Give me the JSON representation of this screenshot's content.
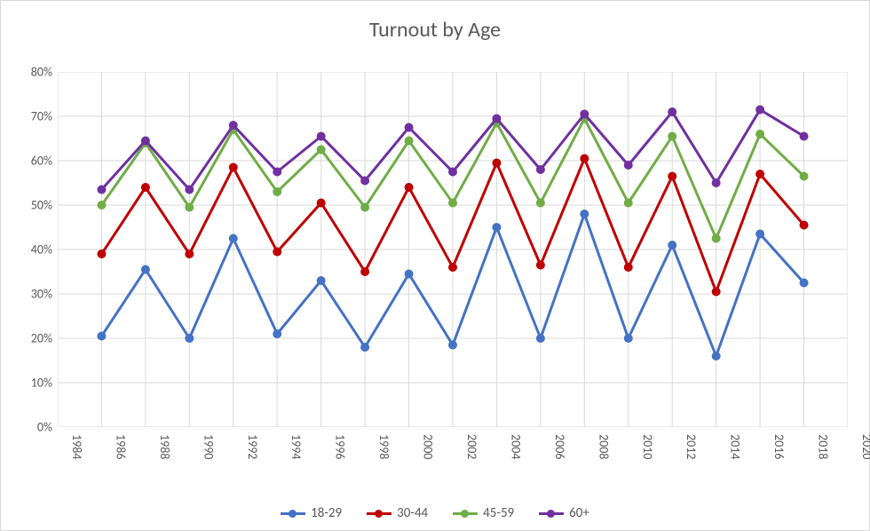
{
  "chart": {
    "type": "line",
    "title": "Turnout by Age",
    "title_fontsize": 24,
    "title_color": "#595959",
    "background_color": "#ffffff",
    "border_color": "#d9d9d9",
    "grid_color": "#d9d9d9",
    "axis_label_color": "#595959",
    "axis_label_fontsize": 14,
    "x": {
      "min": 1984,
      "max": 2020,
      "tick_step": 2,
      "ticks": [
        1984,
        1986,
        1988,
        1990,
        1992,
        1994,
        1996,
        1998,
        2000,
        2002,
        2004,
        2006,
        2008,
        2010,
        2012,
        2014,
        2016,
        2018,
        2020
      ],
      "label_rotation_vertical": true
    },
    "y": {
      "min": 0,
      "max": 80,
      "tick_step": 10,
      "ticks": [
        0,
        10,
        20,
        30,
        40,
        50,
        60,
        70,
        80
      ],
      "format": "percent"
    },
    "series_years": [
      1986,
      1988,
      1990,
      1992,
      1994,
      1996,
      1998,
      2000,
      2002,
      2004,
      2006,
      2008,
      2010,
      2012,
      2014,
      2016,
      2018
    ],
    "series": [
      {
        "name": "18-29",
        "color": "#4472c4",
        "marker": "circle",
        "marker_size": 9,
        "line_width": 3,
        "values": [
          20.5,
          35.5,
          20,
          42.5,
          21,
          33,
          18,
          34.5,
          18.5,
          45,
          20,
          48,
          20,
          41,
          16,
          43.5,
          32.5
        ]
      },
      {
        "name": "30-44",
        "color": "#c00000",
        "marker": "circle",
        "marker_size": 9,
        "line_width": 3,
        "values": [
          39,
          54,
          39,
          58.5,
          39.5,
          50.5,
          35,
          54,
          36,
          59.5,
          36.5,
          60.5,
          36,
          56.5,
          30.5,
          57,
          45.5
        ]
      },
      {
        "name": "45-59",
        "color": "#70ad47",
        "marker": "circle",
        "marker_size": 9,
        "line_width": 3,
        "values": [
          50,
          64,
          49.5,
          67,
          53,
          62.5,
          49.5,
          64.5,
          50.5,
          68.5,
          50.5,
          69.5,
          50.5,
          65.5,
          42.5,
          66,
          56.5
        ]
      },
      {
        "name": "60+",
        "color": "#7030a0",
        "marker": "circle",
        "marker_size": 9,
        "line_width": 3,
        "values": [
          53.5,
          64.5,
          53.5,
          68,
          57.5,
          65.5,
          55.5,
          67.5,
          57.5,
          69.5,
          58,
          70.5,
          59,
          71,
          55,
          71.5,
          65.5
        ]
      }
    ],
    "legend": {
      "position": "bottom",
      "items": [
        "18-29",
        "30-44",
        "45-59",
        "60+"
      ]
    }
  }
}
